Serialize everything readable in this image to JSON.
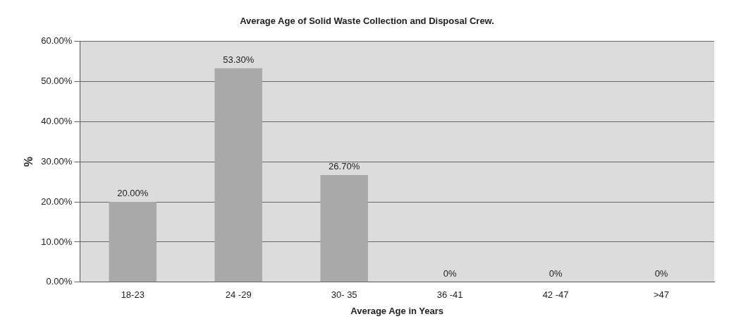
{
  "chart_data": {
    "type": "bar",
    "title": "Average Age of Solid Waste Collection and Disposal Crew.",
    "xlabel": "Average Age in Years",
    "ylabel": "%",
    "categories": [
      "18-23",
      "24 -29",
      "30- 35",
      "36 -41",
      "42 -47",
      ">47"
    ],
    "values": [
      20,
      53.3,
      26.7,
      0,
      0,
      0
    ],
    "value_labels": [
      "20.00%",
      "53.30%",
      "26.70%",
      "0%",
      "0%",
      "0%"
    ],
    "color": "#a9a9a9",
    "ylim": [
      0,
      60
    ],
    "yticks": [
      {
        "value": 0,
        "label": "0.00%"
      },
      {
        "value": 10,
        "label": "10.00%"
      },
      {
        "value": 20,
        "label": "20.00%"
      },
      {
        "value": 30,
        "label": "30.00%"
      },
      {
        "value": 40,
        "label": "40.00%"
      },
      {
        "value": 50,
        "label": "50.00%"
      },
      {
        "value": 60,
        "label": "60.00%"
      }
    ],
    "grid": "y",
    "legend": false
  }
}
